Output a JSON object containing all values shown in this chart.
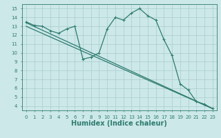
{
  "line1_x": [
    0,
    1,
    2,
    3,
    4,
    5,
    6,
    7,
    8,
    9,
    10,
    11,
    12,
    13,
    14,
    15,
    16,
    17,
    18,
    19,
    20,
    21,
    22,
    23
  ],
  "line1_y": [
    13.5,
    13.1,
    13.0,
    12.5,
    12.2,
    12.7,
    13.0,
    9.3,
    9.5,
    10.0,
    12.7,
    14.0,
    13.7,
    14.5,
    15.0,
    14.2,
    13.7,
    11.5,
    9.7,
    6.5,
    5.8,
    4.5,
    4.2,
    3.7
  ],
  "line2_x": [
    0,
    23
  ],
  "line2_y": [
    13.4,
    3.7
  ],
  "line3_x": [
    0,
    23
  ],
  "line3_y": [
    13.0,
    3.7
  ],
  "xlabel": "Humidex (Indice chaleur)",
  "xlim": [
    -0.5,
    23.5
  ],
  "ylim": [
    3.5,
    15.5
  ],
  "yticks": [
    4,
    5,
    6,
    7,
    8,
    9,
    10,
    11,
    12,
    13,
    14,
    15
  ],
  "xticks": [
    0,
    1,
    2,
    3,
    4,
    5,
    6,
    7,
    8,
    9,
    10,
    11,
    12,
    13,
    14,
    15,
    16,
    17,
    18,
    19,
    20,
    21,
    22,
    23
  ],
  "bg_color": "#cce8e8",
  "grid_color": "#aacccc",
  "line_color": "#2e7b6e",
  "label_color": "#2e7b6e",
  "xlabel_fontsize": 7,
  "tick_fontsize": 5
}
